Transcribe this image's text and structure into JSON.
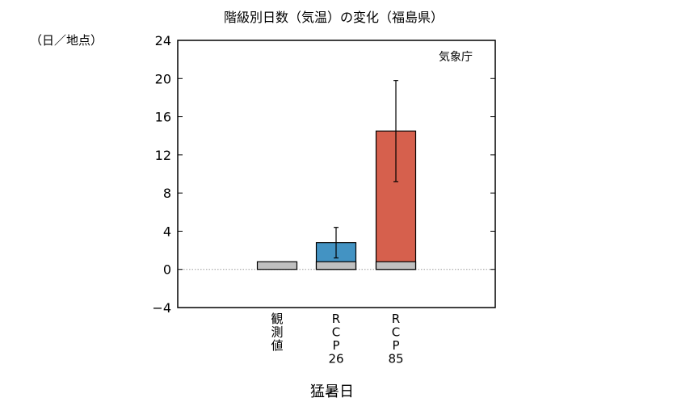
{
  "chart_data": {
    "type": "bar",
    "title": "階級別日数（気温）の変化（福島県）",
    "unit_label": "（日／地点）",
    "source_label": "気象庁",
    "xlabel": "猛暑日",
    "ylabel": "",
    "ylim": [
      -4,
      24
    ],
    "yticks": [
      "24",
      "20",
      "16",
      "12",
      "8",
      "4",
      "0",
      "−4"
    ],
    "grid": false,
    "categories": [
      {
        "key": "obs",
        "lines": [
          "観",
          "測",
          "値"
        ]
      },
      {
        "key": "rcp26",
        "lines": [
          "R",
          "C",
          "P",
          "26"
        ]
      },
      {
        "key": "rcp85",
        "lines": [
          "R",
          "C",
          "P",
          "85"
        ]
      }
    ],
    "base_value": 0.8,
    "bars": [
      {
        "category": "obs",
        "value": 0.8,
        "color": "#c0c0c0",
        "error": null
      },
      {
        "category": "rcp26",
        "value": 2.8,
        "color": "#4393c3",
        "error": [
          1.2,
          4.4
        ]
      },
      {
        "category": "rcp85",
        "value": 14.5,
        "color": "#d6604d",
        "error": [
          9.2,
          19.8
        ]
      }
    ],
    "colors": {
      "baseline": "#c0c0c0",
      "rcp26": "#4393c3",
      "rcp85": "#d6604d",
      "zero_line": "#999999"
    }
  }
}
